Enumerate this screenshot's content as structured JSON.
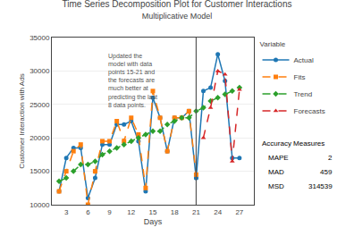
{
  "chart_data": {
    "type": "line",
    "title": "Time Series Decomposition Plot for Customer Interactions",
    "subtitle": "Multiplicative Model",
    "x_label": "Days",
    "y_label": "Customer Interaction with Ads",
    "xlim": [
      1,
      29
    ],
    "ylim": [
      10000,
      35000
    ],
    "xticks": [
      3,
      6,
      9,
      12,
      15,
      18,
      21,
      24,
      27
    ],
    "yticks": [
      10000,
      15000,
      20000,
      25000,
      30000,
      35000
    ],
    "grid": "y",
    "legend": "right",
    "legend_title": "Variable",
    "vline": 21,
    "annotations": [
      {
        "text": "Updated the\nmodel with data\npoints 15-21 and\nthe forecasts are\nmuch better at\npredicting the last\n8 data points.",
        "x": 8.5,
        "y": 33000
      }
    ],
    "accuracy": {
      "title": "Accuracy Measures",
      "rows": [
        {
          "label": "MAPE",
          "value": 2
        },
        {
          "label": "MAD",
          "value": 459
        },
        {
          "label": "MSD",
          "value": 314539
        }
      ]
    },
    "series": [
      {
        "name": "Actual",
        "marker": "circle",
        "line_style": "solid",
        "x": [
          2,
          3,
          4,
          5,
          6,
          7,
          8,
          9,
          10,
          11,
          12,
          13,
          14,
          15,
          16,
          17,
          18,
          19,
          20,
          21,
          21,
          22,
          23,
          24,
          25,
          26,
          27
        ],
        "values": [
          12000,
          17000,
          18500,
          18500,
          11000,
          14000,
          19000,
          19000,
          22000,
          22000,
          22500,
          19500,
          12000,
          26000,
          23000,
          18000,
          23000,
          23000,
          24000,
          14000,
          14000,
          27000,
          27500,
          32500,
          28500,
          17000,
          17000
        ]
      },
      {
        "name": "Fits",
        "marker": "square",
        "line_style": "dash",
        "x": [
          2,
          3,
          4,
          5,
          6,
          7,
          8,
          9,
          10,
          11,
          12,
          13,
          14,
          15,
          16,
          17,
          18,
          19,
          20,
          21
        ],
        "values": [
          12000,
          15000,
          18000,
          19000,
          10000,
          15000,
          19500,
          19500,
          22500,
          19500,
          23000,
          20500,
          12500,
          27000,
          23000,
          18000,
          23000,
          23000,
          24000,
          14500
        ]
      },
      {
        "name": "Trend",
        "marker": "diamond",
        "line_style": "dash",
        "x": [
          2,
          3,
          4,
          5,
          6,
          7,
          8,
          9,
          10,
          11,
          12,
          13,
          14,
          15,
          16,
          17,
          18,
          19,
          20,
          21,
          22,
          23,
          24,
          25,
          26,
          27
        ],
        "values": [
          13500,
          14000,
          15000,
          16000,
          16000,
          16500,
          17500,
          18000,
          18500,
          19000,
          19500,
          20000,
          20500,
          21000,
          21000,
          22000,
          22500,
          23000,
          23000,
          24000,
          24500,
          25500,
          26000,
          26500,
          27000,
          27500
        ]
      },
      {
        "name": "Forecasts",
        "marker": "triangle-up",
        "line_style": "dash",
        "x": [
          22,
          23,
          24,
          25,
          26,
          27
        ],
        "values": [
          20000,
          24500,
          30000,
          29500,
          16500,
          27200
        ]
      }
    ]
  }
}
